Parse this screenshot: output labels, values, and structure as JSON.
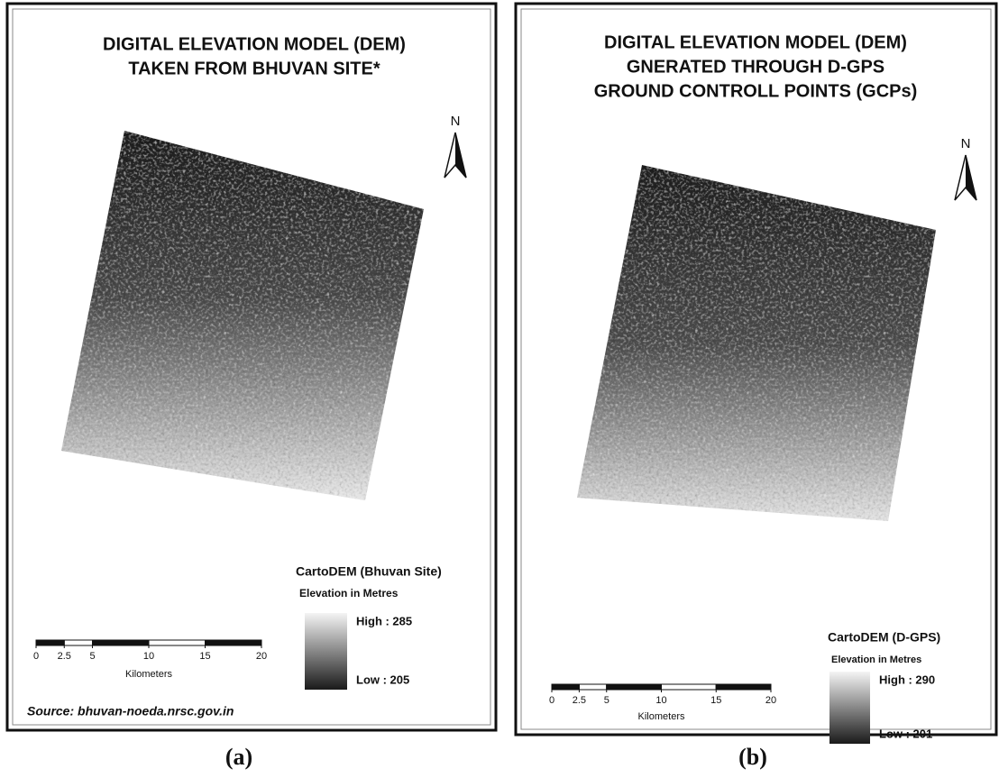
{
  "panels": [
    {
      "title": [
        "DIGITAL ELEVATION MODEL (DEM)",
        "TAKEN FROM BHUVAN SITE*"
      ],
      "north": "N",
      "legend": {
        "title": "CartoDEM (Bhuvan Site)",
        "subtitle": "Elevation in Metres",
        "high": "High : 285",
        "low": "Low : 205"
      },
      "scale_bar": {
        "ticks": [
          0,
          2.5,
          5,
          10,
          15,
          20
        ],
        "unit": "Kilometers"
      },
      "source": "Source: bhuvan-noeda.nrsc.gov.in",
      "caption": "(a)"
    },
    {
      "title": [
        "DIGITAL ELEVATION MODEL (DEM)",
        "GNERATED THROUGH D-GPS",
        "GROUND CONTROLL POINTS (GCPs)"
      ],
      "north": "N",
      "legend": {
        "title": "CartoDEM (D-GPS)",
        "subtitle": "Elevation in Metres",
        "high": "High : 290",
        "low": "Low : 201"
      },
      "scale_bar": {
        "ticks": [
          0,
          2.5,
          5,
          10,
          15,
          20
        ],
        "unit": "Kilometers"
      },
      "caption": "(b)"
    }
  ]
}
